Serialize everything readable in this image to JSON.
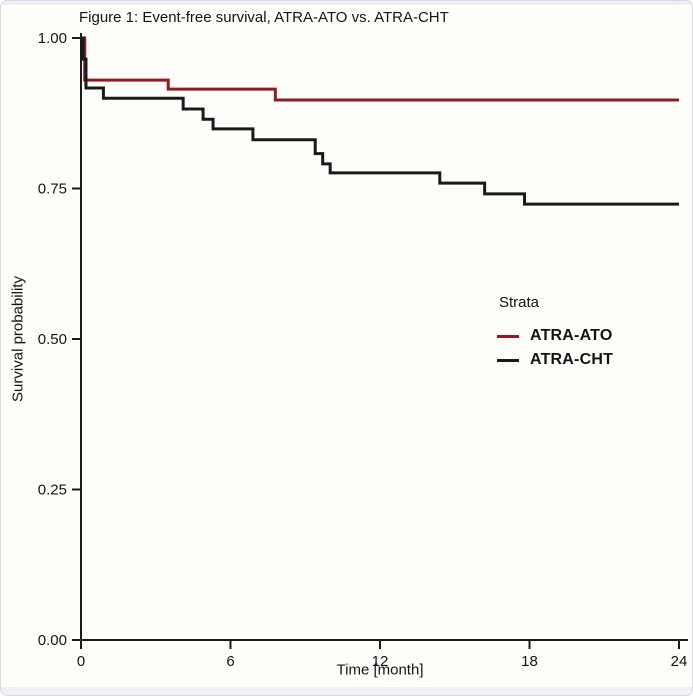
{
  "chart_data": {
    "type": "line",
    "variant": "kaplan_meier_step_survival",
    "title": "Figure 1: Event-free survival, ATRA-ATO vs. ATRA-CHT",
    "xlabel": "Time [month]",
    "ylabel": "Survival probability",
    "xlim": [
      0,
      24
    ],
    "ylim": [
      0.0,
      1.0
    ],
    "grid": false,
    "x_ticks": [
      {
        "value": 0,
        "label": "0"
      },
      {
        "value": 6,
        "label": "6"
      },
      {
        "value": 12,
        "label": "12"
      },
      {
        "value": 18,
        "label": "18"
      },
      {
        "value": 24,
        "label": "24"
      }
    ],
    "y_ticks": [
      {
        "value": 0.0,
        "label": "0.00"
      },
      {
        "value": 0.25,
        "label": "0.25"
      },
      {
        "value": 0.5,
        "label": "0.50"
      },
      {
        "value": 0.75,
        "label": "0.75"
      },
      {
        "value": 1.0,
        "label": "1.00"
      }
    ],
    "legend": {
      "title": "Strata",
      "position": "right-center"
    },
    "axis_color": "#1a1a1a",
    "series": [
      {
        "name": "ATRA-ATO",
        "color": "#8b1e23",
        "step_points": [
          [
            0,
            1.0
          ],
          [
            0.15,
            0.93
          ],
          [
            3.5,
            0.915
          ],
          [
            7.8,
            0.897
          ],
          [
            24,
            0.897
          ]
        ]
      },
      {
        "name": "ATRA-CHT",
        "color": "#1a1a1a",
        "step_points": [
          [
            0,
            1.0
          ],
          [
            0.08,
            0.965
          ],
          [
            0.2,
            0.917
          ],
          [
            0.9,
            0.9
          ],
          [
            4.1,
            0.882
          ],
          [
            4.9,
            0.865
          ],
          [
            5.3,
            0.849
          ],
          [
            6.9,
            0.831
          ],
          [
            9.4,
            0.808
          ],
          [
            9.7,
            0.791
          ],
          [
            10.0,
            0.776
          ],
          [
            14.4,
            0.759
          ],
          [
            16.2,
            0.741
          ],
          [
            17.8,
            0.724
          ],
          [
            24,
            0.724
          ]
        ]
      }
    ]
  }
}
